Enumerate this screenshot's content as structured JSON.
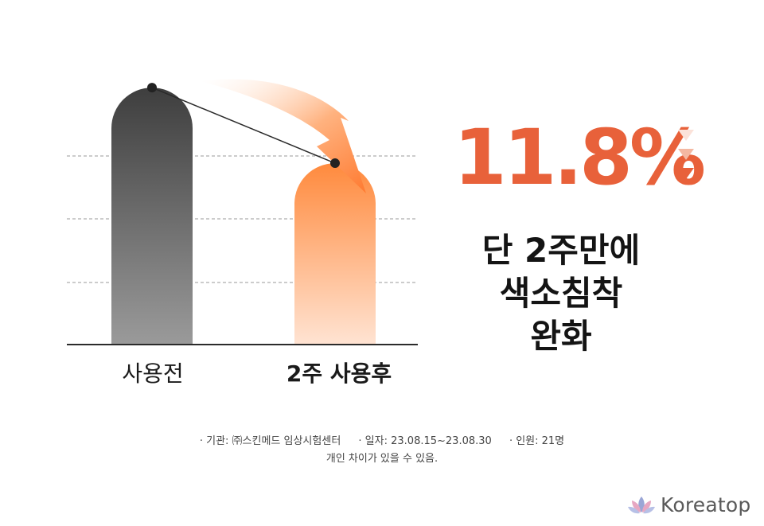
{
  "chart_data": {
    "type": "bar",
    "categories": [
      "사용전",
      "2주 사용후"
    ],
    "values": [
      100,
      88.2
    ],
    "ylim": [
      60,
      102
    ],
    "grid": true,
    "connector_line": true,
    "colors": {
      "before": "#4a4a4a",
      "after": "#ff8a3d"
    }
  },
  "highlight": {
    "value": "11.8%",
    "headline_lines": [
      "단 2주만에",
      "색소침착",
      "완화"
    ]
  },
  "footnote": {
    "agency": "· 기관: ㈜스킨메드 임상시험센터",
    "date": "· 일자: 23.08.15~23.08.30",
    "people": "· 인원: 21명",
    "disclaimer": "개인 차이가 있을 수 있음."
  },
  "brand": {
    "name": "Koreatop",
    "icon": "lotus-icon"
  },
  "colors": {
    "accent": "#e8613a",
    "text": "#141414"
  }
}
